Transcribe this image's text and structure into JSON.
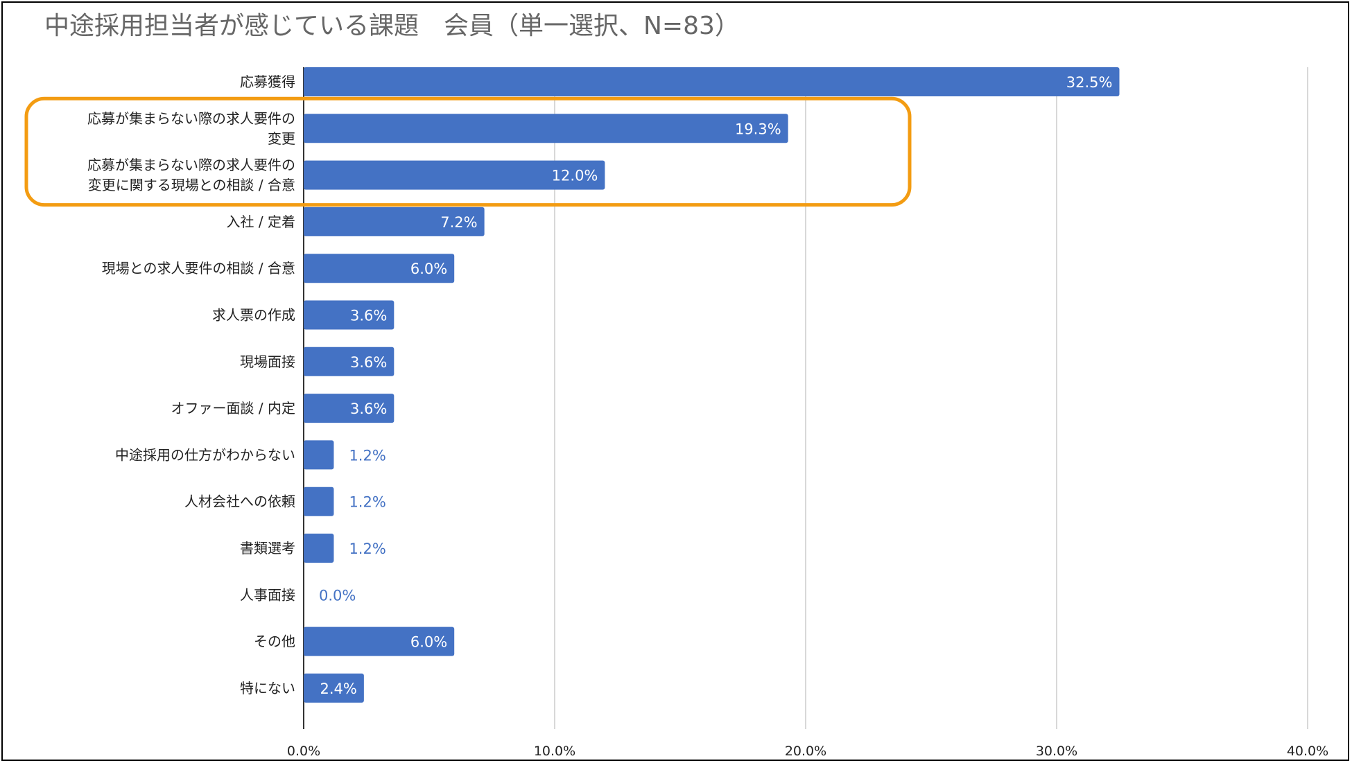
{
  "title": "中途採用担当者が感じている課題　会員（単一選択、N=83）",
  "colors": {
    "bar": "#4472c4",
    "highlight": "#f39c12",
    "grid": "#cccccc",
    "axis": "#333333",
    "inside_label": "#ffffff",
    "outside_label": "#4472c4"
  },
  "chart_data": {
    "type": "bar",
    "orientation": "horizontal",
    "title": "中途採用担当者が感じている課題　会員（単一選択、N=83）",
    "xlabel": "",
    "ylabel": "",
    "xlim": [
      0,
      40
    ],
    "ticks": [
      "0.0%",
      "10.0%",
      "20.0%",
      "30.0%",
      "40.0%"
    ],
    "tick_values": [
      0,
      10,
      20,
      30,
      40
    ],
    "grid": true,
    "categories": [
      [
        "応募獲得"
      ],
      [
        "応募が集まらない際の求人要件の",
        "変更"
      ],
      [
        "応募が集まらない際の求人要件の",
        "変更に関する現場との相談 / 合意"
      ],
      [
        "入社 / 定着"
      ],
      [
        "現場との求人要件の相談 / 合意"
      ],
      [
        "求人票の作成"
      ],
      [
        "現場面接"
      ],
      [
        "オファー面談 / 内定"
      ],
      [
        "中途採用の仕方がわからない"
      ],
      [
        "人材会社への依頼"
      ],
      [
        "書類選考"
      ],
      [
        "人事面接"
      ],
      [
        "その他"
      ],
      [
        "特にない"
      ]
    ],
    "values": [
      32.5,
      19.3,
      12.0,
      7.2,
      6.0,
      3.6,
      3.6,
      3.6,
      1.2,
      1.2,
      1.2,
      0.0,
      6.0,
      2.4
    ],
    "value_labels": [
      "32.5%",
      "19.3%",
      "12.0%",
      "7.2%",
      "6.0%",
      "3.6%",
      "3.6%",
      "3.6%",
      "1.2%",
      "1.2%",
      "1.2%",
      "0.0%",
      "6.0%",
      "2.4%"
    ],
    "highlighted_rows": [
      1,
      2
    ]
  }
}
